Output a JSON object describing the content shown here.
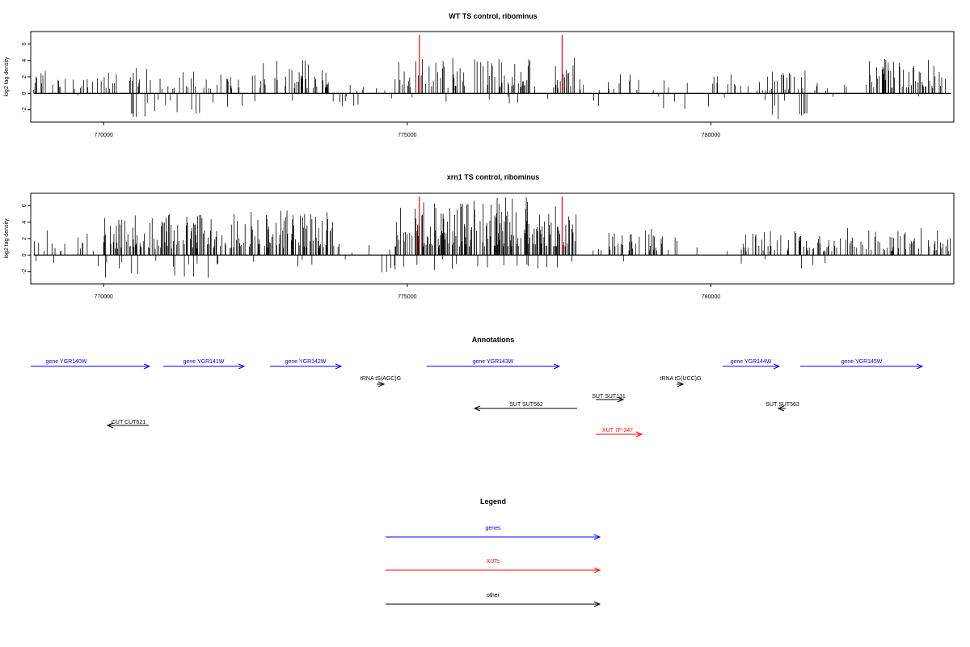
{
  "colors": {
    "gene": "#0000ff",
    "xut": "#ff0000",
    "other": "#000000",
    "highlight": "#ff0000",
    "signal": "#000000"
  },
  "chart_data": [
    {
      "type": "bar",
      "title": "WT TS control, ribominus",
      "ylabel": "log2 tag density",
      "xlim": [
        768800,
        784000
      ],
      "ylim": [
        -3.5,
        7.5
      ],
      "xticks": [
        770000,
        775000,
        780000
      ],
      "xtick_labels": [
        "770000",
        "775000",
        "780000"
      ],
      "yticks": [
        -2,
        0,
        2,
        4,
        6
      ],
      "ytick_labels": [
        "-2",
        "0",
        "2",
        "4",
        "6"
      ],
      "x_start": 768850,
      "x_end": 783950,
      "highlight_lines": [
        775200,
        777550
      ],
      "segments": [
        {
          "start": 768850,
          "end": 770400,
          "density": 0.35,
          "pos_max": 3.0,
          "neg_prob": 0.03,
          "neg_max": 1.0
        },
        {
          "start": 770400,
          "end": 771600,
          "density": 0.35,
          "pos_max": 3.2,
          "neg_prob": 0.3,
          "neg_max": 3.0
        },
        {
          "start": 771600,
          "end": 772600,
          "density": 0.4,
          "pos_max": 3.3,
          "neg_prob": 0.15,
          "neg_max": 2.2
        },
        {
          "start": 772600,
          "end": 773700,
          "density": 0.45,
          "pos_max": 4.2,
          "neg_prob": 0.03,
          "neg_max": 1.0
        },
        {
          "start": 773700,
          "end": 774800,
          "density": 0.08,
          "pos_max": 1.5,
          "neg_prob": 0.2,
          "neg_max": 1.6
        },
        {
          "start": 774800,
          "end": 777800,
          "density": 0.5,
          "pos_max": 4.3,
          "neg_prob": 0.04,
          "neg_max": 1.6
        },
        {
          "start": 777800,
          "end": 781000,
          "density": 0.15,
          "pos_max": 2.5,
          "neg_prob": 0.1,
          "neg_max": 2.0
        },
        {
          "start": 781000,
          "end": 781600,
          "density": 0.4,
          "pos_max": 3.0,
          "neg_prob": 0.35,
          "neg_max": 3.2
        },
        {
          "start": 781600,
          "end": 782600,
          "density": 0.15,
          "pos_max": 2.0,
          "neg_prob": 0.03,
          "neg_max": 1.0
        },
        {
          "start": 782600,
          "end": 783950,
          "density": 0.6,
          "pos_max": 4.3,
          "neg_prob": 0.02,
          "neg_max": 1.0
        }
      ]
    },
    {
      "type": "bar",
      "title": "xrn1 TS control, ribominus",
      "ylabel": "log2 tag density",
      "xlim": [
        768800,
        784000
      ],
      "ylim": [
        -3.5,
        7.5
      ],
      "xticks": [
        770000,
        775000,
        780000
      ],
      "xtick_labels": [
        "770000",
        "775000",
        "780000"
      ],
      "yticks": [
        -2,
        0,
        2,
        4,
        6
      ],
      "ytick_labels": [
        "-2",
        "0",
        "2",
        "4",
        "6"
      ],
      "x_start": 768850,
      "x_end": 783950,
      "highlight_lines": [
        775200,
        777550
      ],
      "segments": [
        {
          "start": 768850,
          "end": 770000,
          "density": 0.45,
          "pos_max": 3.2,
          "neg_prob": 0.05,
          "neg_max": 2.0
        },
        {
          "start": 770000,
          "end": 772000,
          "density": 0.9,
          "pos_max": 5.0,
          "neg_prob": 0.25,
          "neg_max": 2.8
        },
        {
          "start": 772000,
          "end": 773800,
          "density": 0.85,
          "pos_max": 5.6,
          "neg_prob": 0.05,
          "neg_max": 1.5
        },
        {
          "start": 773800,
          "end": 774800,
          "density": 0.06,
          "pos_max": 1.5,
          "neg_prob": 0.2,
          "neg_max": 2.3
        },
        {
          "start": 774800,
          "end": 777800,
          "density": 1.0,
          "pos_max": 7.0,
          "neg_prob": 0.12,
          "neg_max": 1.9
        },
        {
          "start": 777800,
          "end": 778300,
          "density": 0.05,
          "pos_max": 1.0,
          "neg_prob": 0.0,
          "neg_max": 0
        },
        {
          "start": 778300,
          "end": 779200,
          "density": 0.8,
          "pos_max": 3.8,
          "neg_prob": 0.06,
          "neg_max": 2.0
        },
        {
          "start": 779200,
          "end": 780500,
          "density": 0.1,
          "pos_max": 3.0,
          "neg_prob": 0.0,
          "neg_max": 0
        },
        {
          "start": 780500,
          "end": 782000,
          "density": 0.55,
          "pos_max": 3.0,
          "neg_prob": 0.08,
          "neg_max": 2.0
        },
        {
          "start": 782000,
          "end": 783950,
          "density": 0.6,
          "pos_max": 3.3,
          "neg_prob": 0.0,
          "neg_max": 0
        }
      ]
    }
  ],
  "annotations": {
    "title": "Annotations",
    "features": [
      {
        "label": "gene YGR140W",
        "type": "gene"
      },
      {
        "label": "gene YGR141W",
        "type": "gene"
      },
      {
        "label": "gene YGR142W",
        "type": "gene"
      },
      {
        "label": "tRNA tS(AGC)G",
        "type": "other"
      },
      {
        "label": "gene YGR143W",
        "type": "gene"
      },
      {
        "label": "SUT SUT562",
        "type": "other"
      },
      {
        "label": "SUT SUT131",
        "type": "other"
      },
      {
        "label": "XUT 7F-347",
        "type": "xut"
      },
      {
        "label": "tRNA tG(UCC)G",
        "type": "other"
      },
      {
        "label": "gene YGR144W",
        "type": "gene"
      },
      {
        "label": "SUT SUT563",
        "type": "other"
      },
      {
        "label": "gene YGR145W",
        "type": "gene"
      },
      {
        "label": "CUT CUT621",
        "type": "other"
      }
    ]
  },
  "legend": {
    "title": "Legend",
    "items": [
      {
        "label": "genes",
        "type": "gene"
      },
      {
        "label": "XUTs",
        "type": "xut"
      },
      {
        "label": "other",
        "type": "other"
      }
    ]
  }
}
